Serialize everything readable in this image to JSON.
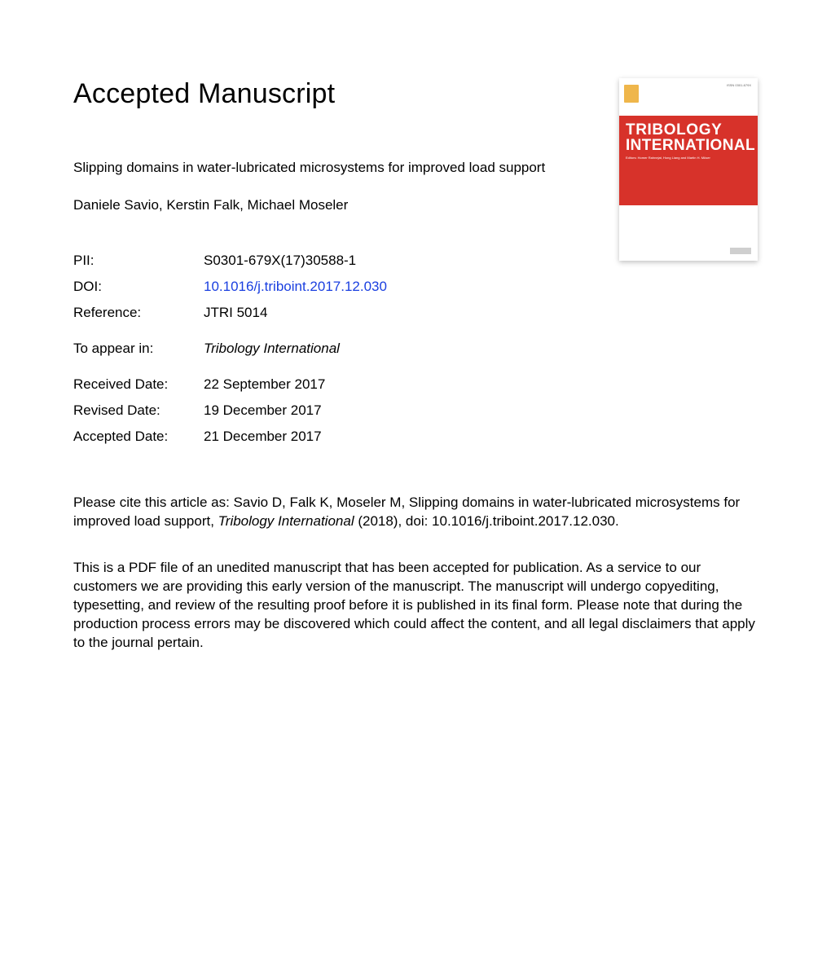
{
  "heading": "Accepted Manuscript",
  "article_title": "Slipping domains in water-lubricated microsystems for improved load support",
  "authors": "Daniele Savio, Kerstin Falk, Michael Moseler",
  "meta": {
    "pii_label": "PII:",
    "pii_value": "S0301-679X(17)30588-1",
    "doi_label": "DOI:",
    "doi_value": "10.1016/j.triboint.2017.12.030",
    "reference_label": "Reference:",
    "reference_value": "JTRI 5014",
    "appear_label": "To appear in:",
    "appear_value": "Tribology International",
    "received_label": "Received Date:",
    "received_value": "22 September 2017",
    "revised_label": "Revised Date:",
    "revised_value": "19 December 2017",
    "accepted_label": "Accepted Date:",
    "accepted_value": "21 December 2017"
  },
  "citation": {
    "pre": "Please cite this article as: Savio D, Falk K, Moseler M, Slipping domains in water-lubricated microsystems for improved load support, ",
    "journal": "Tribology International",
    "post": " (2018), doi: 10.1016/j.triboint.2017.12.030."
  },
  "disclaimer": "This is a PDF file of an unedited manuscript that has been accepted for publication. As a service to our customers we are providing this early version of the manuscript. The manuscript will undergo copyediting, typesetting, and review of the resulting proof before it is published in its final form. Please note that during the production process errors may be discovered which could affect the content, and all legal disclaimers that apply to the journal pertain.",
  "cover": {
    "line1": "TRIBOLOGY",
    "line2": "INTERNATIONAL",
    "sub": "Editors: Homer Rahnejat, Hong Liang and Martin H. Müser",
    "issn": "ISSN 0301-679X",
    "colors": {
      "band_bg": "#d7322a",
      "page_bg": "#ffffff",
      "logo": "#efb64b",
      "text_white": "#ffffff"
    }
  },
  "colors": {
    "link": "#1a3fe0",
    "text": "#000000",
    "bg": "#ffffff"
  }
}
